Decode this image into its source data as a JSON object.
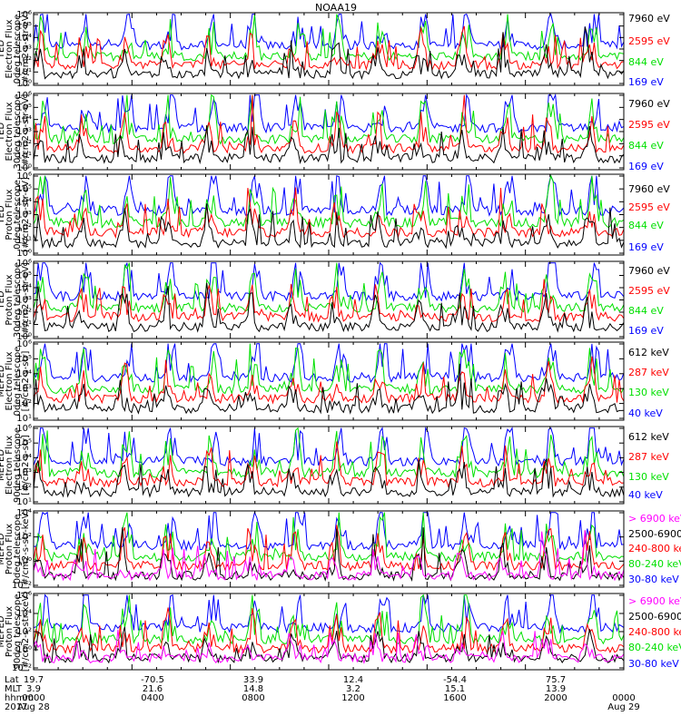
{
  "title": "NOAA19",
  "panels": [
    {
      "ylabel": [
        "TED",
        "Electron Flux",
        "0deg telescope",
        "[#/cm2-s-str-eV]"
      ],
      "ytick_exponents": [
        "10",
        "1",
        "2",
        "3",
        "4",
        "5",
        "6"
      ],
      "ylim_log10": [
        0,
        6
      ],
      "legend": [
        {
          "label": "7960 eV",
          "color": "#000000"
        },
        {
          "label": "2595 eV",
          "color": "#ff0000"
        },
        {
          "label": "844 eV",
          "color": "#00e000"
        },
        {
          "label": "169 eV",
          "color": "#0000ff"
        }
      ]
    },
    {
      "ylabel": [
        "TED",
        "Electron Flux",
        "30deg telescope",
        "[#/cm2-s-str-eV]"
      ],
      "ylim_log10": [
        0,
        6
      ],
      "legend": [
        {
          "label": "7960 eV",
          "color": "#000000"
        },
        {
          "label": "2595 eV",
          "color": "#ff0000"
        },
        {
          "label": "844 eV",
          "color": "#00e000"
        },
        {
          "label": "169 eV",
          "color": "#0000ff"
        }
      ]
    },
    {
      "ylabel": [
        "TED",
        "Proton Flux",
        "0deg telescope",
        "[#/cm2-s-str-eV]"
      ],
      "ylim_log10": [
        0,
        6
      ],
      "legend": [
        {
          "label": "7960 eV",
          "color": "#000000"
        },
        {
          "label": "2595 eV",
          "color": "#ff0000"
        },
        {
          "label": "844 eV",
          "color": "#00e000"
        },
        {
          "label": "169 eV",
          "color": "#0000ff"
        }
      ]
    },
    {
      "ylabel": [
        "TED",
        "Proton Flux",
        "30deg telescope",
        "[#/cm2-s-str-eV]"
      ],
      "ylim_log10": [
        0,
        6
      ],
      "legend": [
        {
          "label": "7960 eV",
          "color": "#000000"
        },
        {
          "label": "2595 eV",
          "color": "#ff0000"
        },
        {
          "label": "844 eV",
          "color": "#00e000"
        },
        {
          "label": "169 eV",
          "color": "#0000ff"
        }
      ]
    },
    {
      "ylabel": [
        "MEPED",
        "Electron Flux",
        "0deg telescope",
        "[#/cm2-s-str]"
      ],
      "ylim_log10": [
        1,
        6
      ],
      "legend": [
        {
          "label": "612 keV",
          "color": "#000000"
        },
        {
          "label": "287 keV",
          "color": "#ff0000"
        },
        {
          "label": "130 keV",
          "color": "#00e000"
        },
        {
          "label": "40 keV",
          "color": "#0000ff"
        }
      ]
    },
    {
      "ylabel": [
        "MEPED",
        "Electron Flux",
        "90deg telescope",
        "[#/cm2-s-str]"
      ],
      "ylim_log10": [
        1,
        6
      ],
      "legend": [
        {
          "label": "612 keV",
          "color": "#000000"
        },
        {
          "label": "287 keV",
          "color": "#ff0000"
        },
        {
          "label": "130 keV",
          "color": "#00e000"
        },
        {
          "label": "40 keV",
          "color": "#0000ff"
        }
      ]
    },
    {
      "ylabel": [
        "MEPED",
        "Proton Flux",
        "0deg telescope",
        "[#/cm2-s-str-keV]"
      ],
      "ylim_log10": [
        -2,
        5
      ],
      "legend": [
        {
          "label": "> 6900 keV",
          "color": "#ff00ff"
        },
        {
          "label": "2500-6900",
          "color": "#000000"
        },
        {
          "label": "240-800 ke",
          "color": "#ff0000"
        },
        {
          "label": "80-240 keV",
          "color": "#00e000"
        },
        {
          "label": "30-80 keV",
          "color": "#0000ff"
        }
      ]
    },
    {
      "ylabel": [
        "MEPED",
        "Proton Flux",
        "90deg telescope",
        "[#/cm2-s-str-keV]"
      ],
      "ylim_log10": [
        -2,
        6
      ],
      "legend": [
        {
          "label": "> 6900 keV",
          "color": "#ff00ff"
        },
        {
          "label": "2500-6900",
          "color": "#000000"
        },
        {
          "label": "240-800 ke",
          "color": "#ff0000"
        },
        {
          "label": "80-240 keV",
          "color": "#00e000"
        },
        {
          "label": "30-80 keV",
          "color": "#0000ff"
        }
      ]
    }
  ],
  "ytick_labels": {
    "ted": [
      "10⁰",
      "10¹",
      "10²",
      "10³",
      "10⁴",
      "10⁵",
      "10⁶"
    ],
    "meped_e": [
      "10¹",
      "10²",
      "10³",
      "10⁴",
      "10⁵",
      "10⁶"
    ],
    "meped_p0": [
      "10⁻²",
      "10⁰",
      "10²",
      "10⁴"
    ],
    "meped_p90": [
      "10⁻²",
      "10⁰",
      "10²",
      "10⁴",
      "10⁶"
    ]
  },
  "xaxis": {
    "row_labels": [
      "Lat",
      "MLT",
      "hhmm",
      "2017"
    ],
    "ticks": [
      {
        "lat": "19.7",
        "mlt": "3.9",
        "hhmm": "0000",
        "date": "Aug 28"
      },
      {
        "lat": "-70.5",
        "mlt": "21.6",
        "hhmm": "0400",
        "date": ""
      },
      {
        "lat": "33.9",
        "mlt": "14.8",
        "hhmm": "0800",
        "date": ""
      },
      {
        "lat": "12.4",
        "mlt": "3.2",
        "hhmm": "1200",
        "date": ""
      },
      {
        "lat": "-54.4",
        "mlt": "15.1",
        "hhmm": "1600",
        "date": ""
      },
      {
        "lat": "75.7",
        "mlt": "13.9",
        "hhmm": "2000",
        "date": ""
      },
      {
        "lat": "",
        "mlt": "",
        "hhmm": "0000",
        "date": "Aug 29"
      }
    ],
    "range_hours": [
      0,
      24
    ]
  },
  "chart_data": {
    "type": "line",
    "title": "NOAA19",
    "x_unit": "UT hour",
    "xlim": [
      0,
      24
    ],
    "y_scale": "log",
    "series_note_per_panel": "4-5 energy channels per panel",
    "yscale": "log"
  }
}
